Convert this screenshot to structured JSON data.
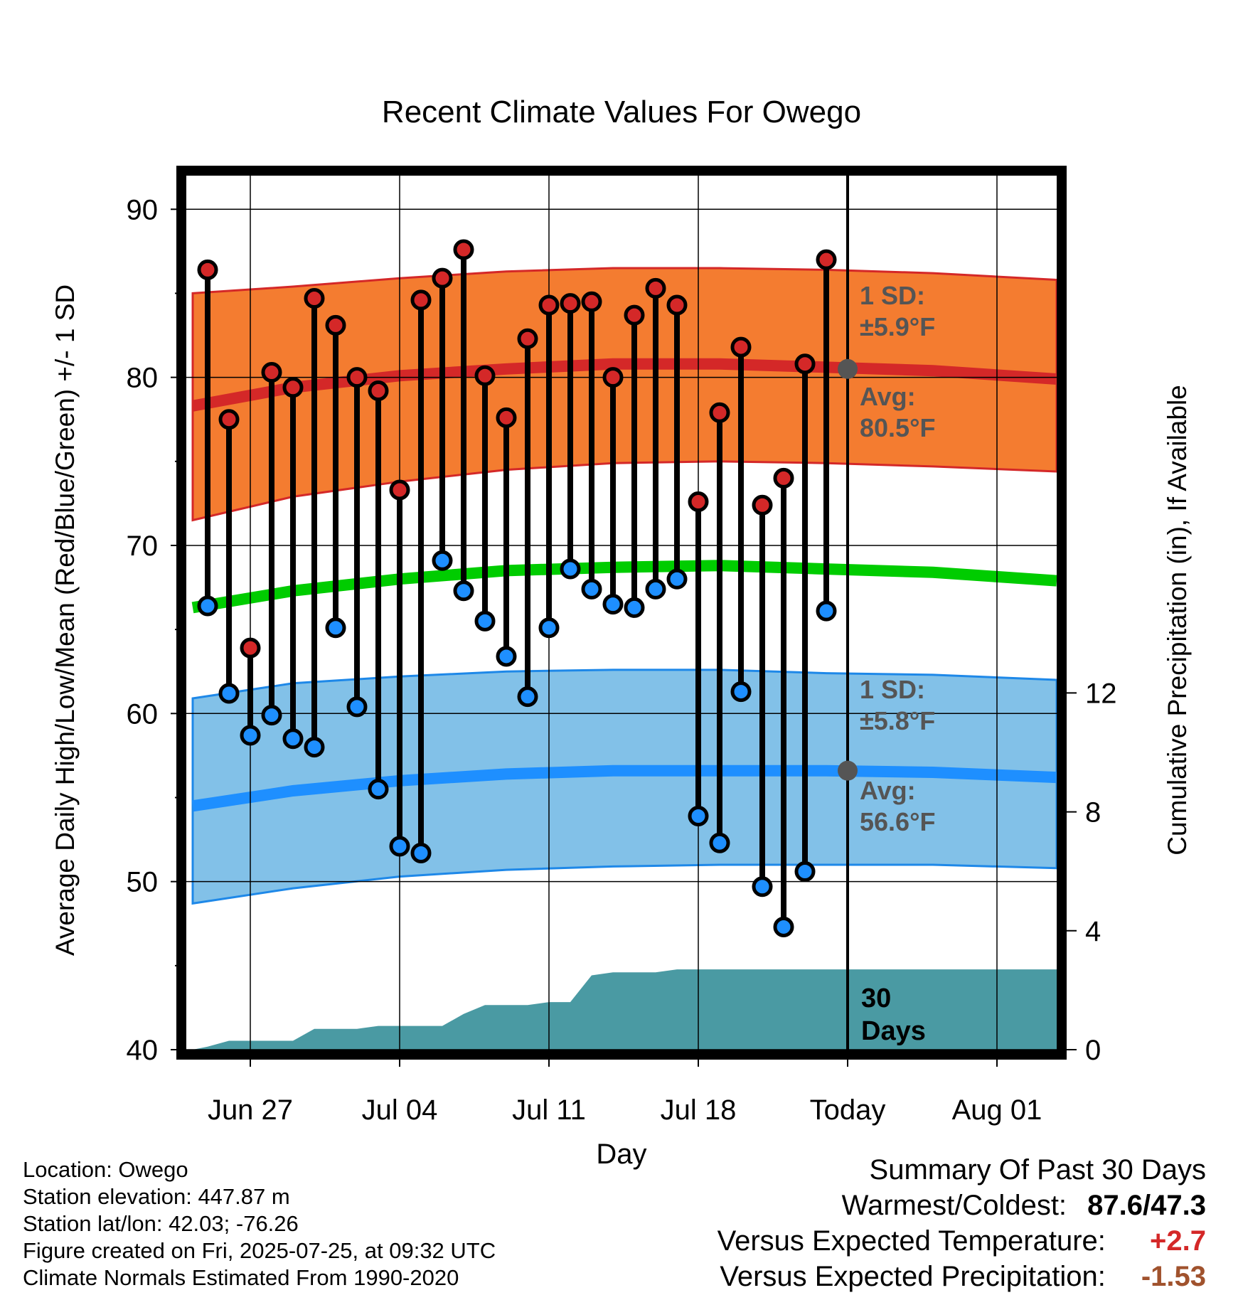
{
  "colors": {
    "high_band": "#f47c30",
    "high_band_edge": "#d42828",
    "high_avg": "#d42828",
    "low_band": "#82c1e8",
    "low_band_edge": "#1e88e8",
    "low_avg": "#1e8fff",
    "mean_avg": "#00cc00",
    "precip": "#4a9aa3",
    "high_dot": "#d42828",
    "low_dot": "#1e8fff",
    "marker": "#555555",
    "summary_warm": "#d42828",
    "summary_precip": "#a0522d"
  },
  "chart_data": {
    "type": "line",
    "title": "Recent Climate Values For Owego",
    "xlabel": "Day",
    "ylabel": "Average Daily High/Low/Mean (Red/Blue/Green) +/- 1 SD",
    "y2label": "Cumulative Precipitation (in), If Available",
    "x_ticks": [
      {
        "day": 3,
        "label": "Jun 27"
      },
      {
        "day": 10,
        "label": "Jul 04"
      },
      {
        "day": 17,
        "label": "Jul 11"
      },
      {
        "day": 24,
        "label": "Jul 18"
      },
      {
        "day": 31,
        "label": "Today"
      },
      {
        "day": 38,
        "label": "Aug 01"
      }
    ],
    "xlim": [
      0,
      40.8
    ],
    "ylim": [
      40,
      92
    ],
    "y_ticks": [
      40,
      50,
      60,
      70,
      80,
      90
    ],
    "y2lim": [
      0,
      29.4
    ],
    "y2_ticks": [
      0,
      4,
      8,
      12
    ],
    "grid": true,
    "today_day": 31,
    "days": [
      1,
      2,
      3,
      4,
      5,
      6,
      7,
      8,
      9,
      10,
      11,
      12,
      13,
      14,
      15,
      16,
      17,
      18,
      19,
      20,
      21,
      22,
      23,
      24,
      25,
      26,
      27,
      28,
      29,
      30
    ],
    "highs": [
      86.4,
      77.5,
      63.9,
      80.3,
      79.4,
      84.7,
      83.1,
      80.0,
      79.2,
      73.3,
      84.6,
      85.9,
      87.6,
      80.1,
      77.6,
      82.3,
      84.3,
      84.4,
      84.5,
      80.0,
      83.7,
      85.3,
      84.3,
      72.6,
      77.9,
      81.8,
      72.4,
      74.0,
      80.8,
      87.0
    ],
    "lows": [
      66.4,
      61.2,
      58.7,
      59.9,
      58.5,
      58.0,
      65.1,
      60.4,
      55.5,
      52.1,
      51.7,
      69.1,
      67.3,
      65.5,
      63.4,
      61.0,
      65.1,
      68.6,
      67.4,
      66.5,
      66.3,
      67.4,
      68.0,
      53.9,
      52.3,
      61.3,
      49.7,
      47.3,
      50.6,
      66.1
    ],
    "normals": {
      "x": [
        0.3,
        5,
        10,
        15,
        20,
        25,
        30,
        35,
        40.8
      ],
      "high_avg": [
        78.3,
        79.4,
        80.1,
        80.5,
        80.8,
        80.8,
        80.6,
        80.4,
        79.9
      ],
      "high_sd_upper": [
        85.0,
        85.4,
        85.9,
        86.3,
        86.5,
        86.5,
        86.4,
        86.2,
        85.8
      ],
      "high_sd_lower": [
        71.5,
        72.9,
        73.8,
        74.5,
        74.9,
        75.0,
        74.9,
        74.7,
        74.4
      ],
      "mean_avg": [
        66.3,
        67.3,
        68.0,
        68.5,
        68.7,
        68.8,
        68.6,
        68.4,
        67.9
      ],
      "low_avg": [
        54.5,
        55.4,
        56.0,
        56.4,
        56.6,
        56.6,
        56.6,
        56.5,
        56.2
      ],
      "low_sd_upper": [
        60.9,
        61.8,
        62.2,
        62.5,
        62.6,
        62.6,
        62.4,
        62.3,
        62.0
      ],
      "low_sd_lower": [
        48.7,
        49.6,
        50.3,
        50.7,
        50.9,
        51.0,
        51.0,
        51.0,
        50.8
      ]
    },
    "precip_cumulative": {
      "x": [
        0.3,
        1,
        2,
        4,
        5,
        6,
        8,
        9,
        11,
        12,
        13,
        14,
        16,
        17,
        18,
        19,
        20,
        22,
        23,
        30,
        31,
        40.8
      ],
      "values": [
        0.0,
        0.1,
        0.3,
        0.3,
        0.3,
        0.7,
        0.7,
        0.8,
        0.8,
        0.8,
        1.2,
        1.5,
        1.5,
        1.6,
        1.6,
        2.5,
        2.6,
        2.6,
        2.7,
        2.7,
        2.7,
        2.7
      ]
    },
    "annotations": {
      "high_sd_head": "1 SD:",
      "high_sd_value": "±5.9°F",
      "high_avg_head": "Avg:",
      "high_avg_value": "80.5°F",
      "low_sd_head": "1 SD:",
      "low_sd_value": "±5.8°F",
      "low_avg_head": "Avg:",
      "low_avg_value": "56.6°F",
      "days_line1": "30",
      "days_line2": "Days"
    },
    "marker_values": [
      80.5,
      56.6
    ]
  },
  "metadata": {
    "location": "Location: Owego",
    "elevation": "Station elevation: 447.87 m",
    "latlon": "Station lat/lon: 42.03; -76.26",
    "created": "Figure created on Fri, 2025-07-25, at 09:32 UTC",
    "normals": "Climate Normals Estimated From 1990-2020"
  },
  "summary": {
    "title": "Summary Of Past 30 Days",
    "warm_cold_label": "Warmest/Coldest:",
    "warm_cold_value": "87.6/47.3",
    "temp_label": "Versus Expected Temperature:",
    "temp_value": "+2.7",
    "precip_label": "Versus Expected Precipitation:",
    "precip_value": "-1.53"
  }
}
